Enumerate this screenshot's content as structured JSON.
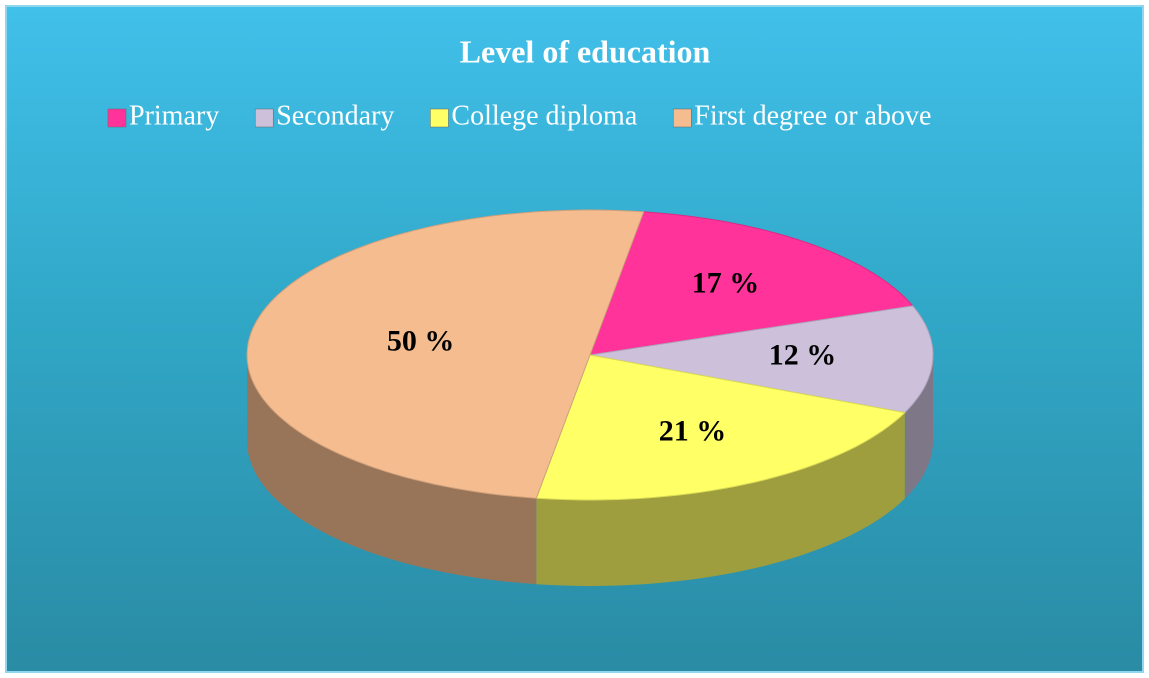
{
  "chart_data": {
    "type": "pie",
    "title": "Level of education",
    "categories": [
      "Primary",
      "Secondary",
      "College diploma",
      "First degree or above"
    ],
    "values": [
      17,
      12,
      21,
      50
    ],
    "value_labels": [
      "17 %",
      "12 %",
      "21 %",
      "50 %"
    ],
    "colors": [
      "#ff3399",
      "#ccc0da",
      "#ffff66",
      "#f5bc8f"
    ],
    "legend": "top"
  }
}
